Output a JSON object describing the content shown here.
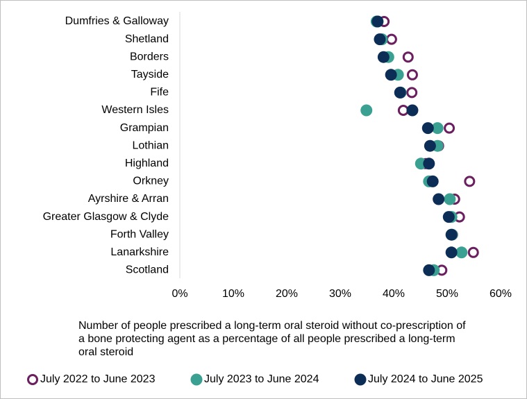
{
  "chart_data": {
    "type": "dot",
    "xlabel": "Number of people prescribed a long-term oral steroid without co-prescription of a bone protecting agent as a percentage of all people prescribed a long-term oral steroid",
    "categories": [
      "Dumfries & Galloway",
      "Shetland",
      "Borders",
      "Tayside",
      "Fife",
      "Western Isles",
      "Grampian",
      "Lothian",
      "Highland",
      "Orkney",
      "Ayrshire & Arran",
      "Greater Glasgow & Clyde",
      "Forth Valley",
      "Lanarkshire",
      "Scotland"
    ],
    "series": [
      {
        "name": "July 2022 to June 2023",
        "color": "#6b1f5f",
        "marker": "hollow",
        "values": [
          38.2,
          39.6,
          42.7,
          43.5,
          43.4,
          41.8,
          50.4,
          48.4,
          46.0,
          54.2,
          51.4,
          52.3,
          51.0,
          54.9,
          49.0
        ]
      },
      {
        "name": "July 2023 to June 2024",
        "color": "#3aa192",
        "marker": "filled",
        "values": [
          36.8,
          37.8,
          39.0,
          40.8,
          41.3,
          34.9,
          48.2,
          48.2,
          45.1,
          46.6,
          50.5,
          50.8,
          50.9,
          52.7,
          47.5
        ]
      },
      {
        "name": "July 2024 to June 2025",
        "color": "#0c2d55",
        "marker": "filled",
        "values": [
          37.0,
          37.4,
          38.1,
          39.5,
          41.2,
          43.5,
          46.4,
          46.8,
          46.6,
          47.3,
          48.4,
          50.3,
          50.8,
          50.8,
          46.6
        ]
      }
    ],
    "xlim": [
      0,
      60
    ],
    "xticks": [
      {
        "value": 0,
        "label": "0%"
      },
      {
        "value": 10,
        "label": "10%"
      },
      {
        "value": 20,
        "label": "20%"
      },
      {
        "value": 30,
        "label": "30%"
      },
      {
        "value": 40,
        "label": "40%"
      },
      {
        "value": 50,
        "label": "50%"
      },
      {
        "value": 60,
        "label": "60%"
      }
    ],
    "legend": "bottom"
  }
}
